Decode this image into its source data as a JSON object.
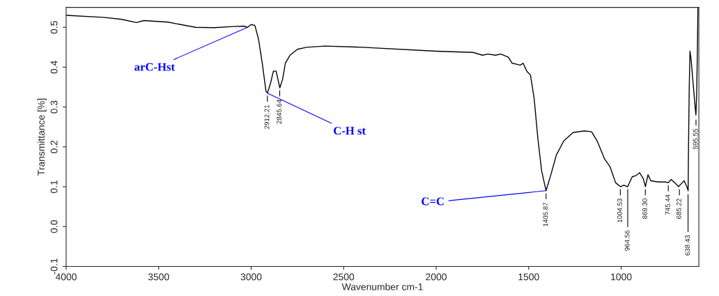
{
  "chart_data": {
    "type": "line",
    "xlabel": "Wavenumber cm-1",
    "ylabel": "Transmittance [%]",
    "xlim": [
      4000,
      580
    ],
    "xticks": [
      4000,
      3500,
      3000,
      2500,
      2000,
      1500,
      1000
    ],
    "ylim": [
      -0.1,
      0.55
    ],
    "yticks": [
      -0.1,
      {
        "value": 0,
        "label": "0.0"
      },
      0.1,
      0.2,
      0.3,
      0.4,
      0.5
    ],
    "grid": false,
    "legend": false,
    "marker": "none",
    "line_style": "solid",
    "series": [
      {
        "color": "#000000",
        "x": [
          4000,
          3800,
          3700,
          3620,
          3580,
          3450,
          3300,
          3200,
          3100,
          3040,
          3020,
          3000,
          2980,
          2960,
          2940,
          2920,
          2912,
          2895,
          2880,
          2865,
          2845,
          2830,
          2815,
          2790,
          2750,
          2700,
          2600,
          2400,
          2000,
          1800,
          1750,
          1720,
          1680,
          1650,
          1610,
          1590,
          1570,
          1545,
          1530,
          1510,
          1490,
          1470,
          1450,
          1430,
          1406,
          1380,
          1350,
          1310,
          1260,
          1200,
          1160,
          1130,
          1090,
          1060,
          1030,
          1004,
          985,
          965,
          940,
          920,
          900,
          880,
          869,
          855,
          840,
          800,
          760,
          745,
          730,
          710,
          690,
          670,
          660,
          645,
          638,
          636,
          632,
          628,
          622,
          615,
          600,
          596,
          592,
          588,
          585
        ],
        "values": [
          0.53,
          0.525,
          0.52,
          0.512,
          0.517,
          0.513,
          0.5,
          0.499,
          0.502,
          0.503,
          0.5,
          0.507,
          0.505,
          0.47,
          0.41,
          0.34,
          0.335,
          0.36,
          0.39,
          0.39,
          0.348,
          0.37,
          0.41,
          0.43,
          0.445,
          0.45,
          0.453,
          0.45,
          0.44,
          0.437,
          0.43,
          0.433,
          0.43,
          0.433,
          0.425,
          0.41,
          0.408,
          0.405,
          0.41,
          0.39,
          0.38,
          0.32,
          0.22,
          0.14,
          0.09,
          0.13,
          0.18,
          0.215,
          0.236,
          0.24,
          0.238,
          0.215,
          0.17,
          0.15,
          0.11,
          0.1,
          0.104,
          0.1,
          0.125,
          0.128,
          0.135,
          0.12,
          0.1,
          0.13,
          0.115,
          0.112,
          0.112,
          0.11,
          0.118,
          0.11,
          0.1,
          0.11,
          0.115,
          0.1,
          0.09,
          0.2,
          0.35,
          0.44,
          0.42,
          0.38,
          0.3,
          0.28,
          0.33,
          0.44,
          0.55
        ]
      }
    ],
    "annotations": [
      {
        "text": "arC-Hst",
        "x": 3020,
        "y": 0.5
      },
      {
        "text": "C-H st",
        "x": 2912.21,
        "y": 0.335
      },
      {
        "text": "C=C",
        "x": 1405.87,
        "y": 0.09
      },
      {
        "text": "2912.21",
        "x": 2912.21,
        "y": 0.335
      },
      {
        "text": "2845.64",
        "x": 2845.64,
        "y": 0.348
      },
      {
        "text": "1405.87",
        "x": 1405.87,
        "y": 0.09
      },
      {
        "text": "1004.53",
        "x": 1004.53,
        "y": 0.1
      },
      {
        "text": "964.56",
        "x": 964.56,
        "y": 0.1
      },
      {
        "text": "869.30",
        "x": 869.3,
        "y": 0.1
      },
      {
        "text": "745.44",
        "x": 745.44,
        "y": 0.11
      },
      {
        "text": "685.22",
        "x": 685.22,
        "y": 0.1
      },
      {
        "text": "638.43",
        "x": 638.43,
        "y": 0.088
      },
      {
        "text": "595.55",
        "x": 595.55,
        "y": 0.275
      }
    ]
  }
}
